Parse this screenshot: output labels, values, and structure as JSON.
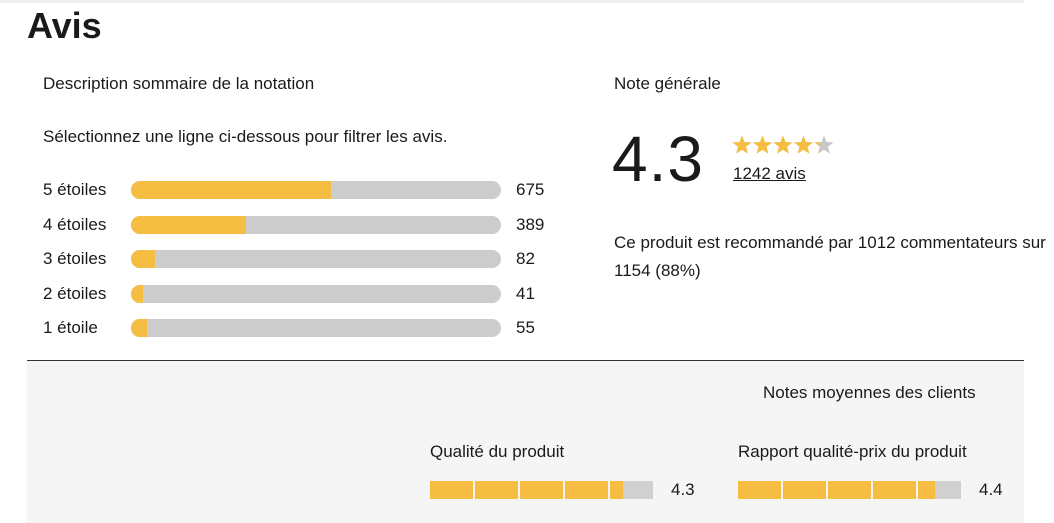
{
  "page": {
    "title": "Avis"
  },
  "summary": {
    "label": "Description sommaire de la notation",
    "filter_hint": "Sélectionnez une ligne ci-dessous pour filtrer les avis.",
    "rows": [
      {
        "label": "5 étoiles",
        "count": "675",
        "fraction": 0.54
      },
      {
        "label": "4 étoiles",
        "count": "389",
        "fraction": 0.31
      },
      {
        "label": "3 étoiles",
        "count": "82",
        "fraction": 0.066
      },
      {
        "label": "2 étoiles",
        "count": "41",
        "fraction": 0.033
      },
      {
        "label": "1 étoile",
        "count": "55",
        "fraction": 0.044
      }
    ]
  },
  "overall": {
    "label": "Note générale",
    "score": "4.3",
    "star_value": 4.3,
    "reviews_link": "1242 avis",
    "recommendation_line1": "Ce produit est recommandé par 1012 commentateurs sur",
    "recommendation_line2": "1154 (88%)"
  },
  "averages": {
    "title": "Notes moyennes des clients",
    "criteria": [
      {
        "label": "Qualité du produit",
        "value": "4.3",
        "rating": 4.3
      },
      {
        "label": "Rapport qualité-prix du produit",
        "value": "4.4",
        "rating": 4.4
      }
    ]
  },
  "colors": {
    "accent": "#f5bd41",
    "track": "#cccccc",
    "panel": "#f5f5f5",
    "star_empty": "#c8c8c8"
  },
  "icons": {
    "star": "star-icon"
  }
}
